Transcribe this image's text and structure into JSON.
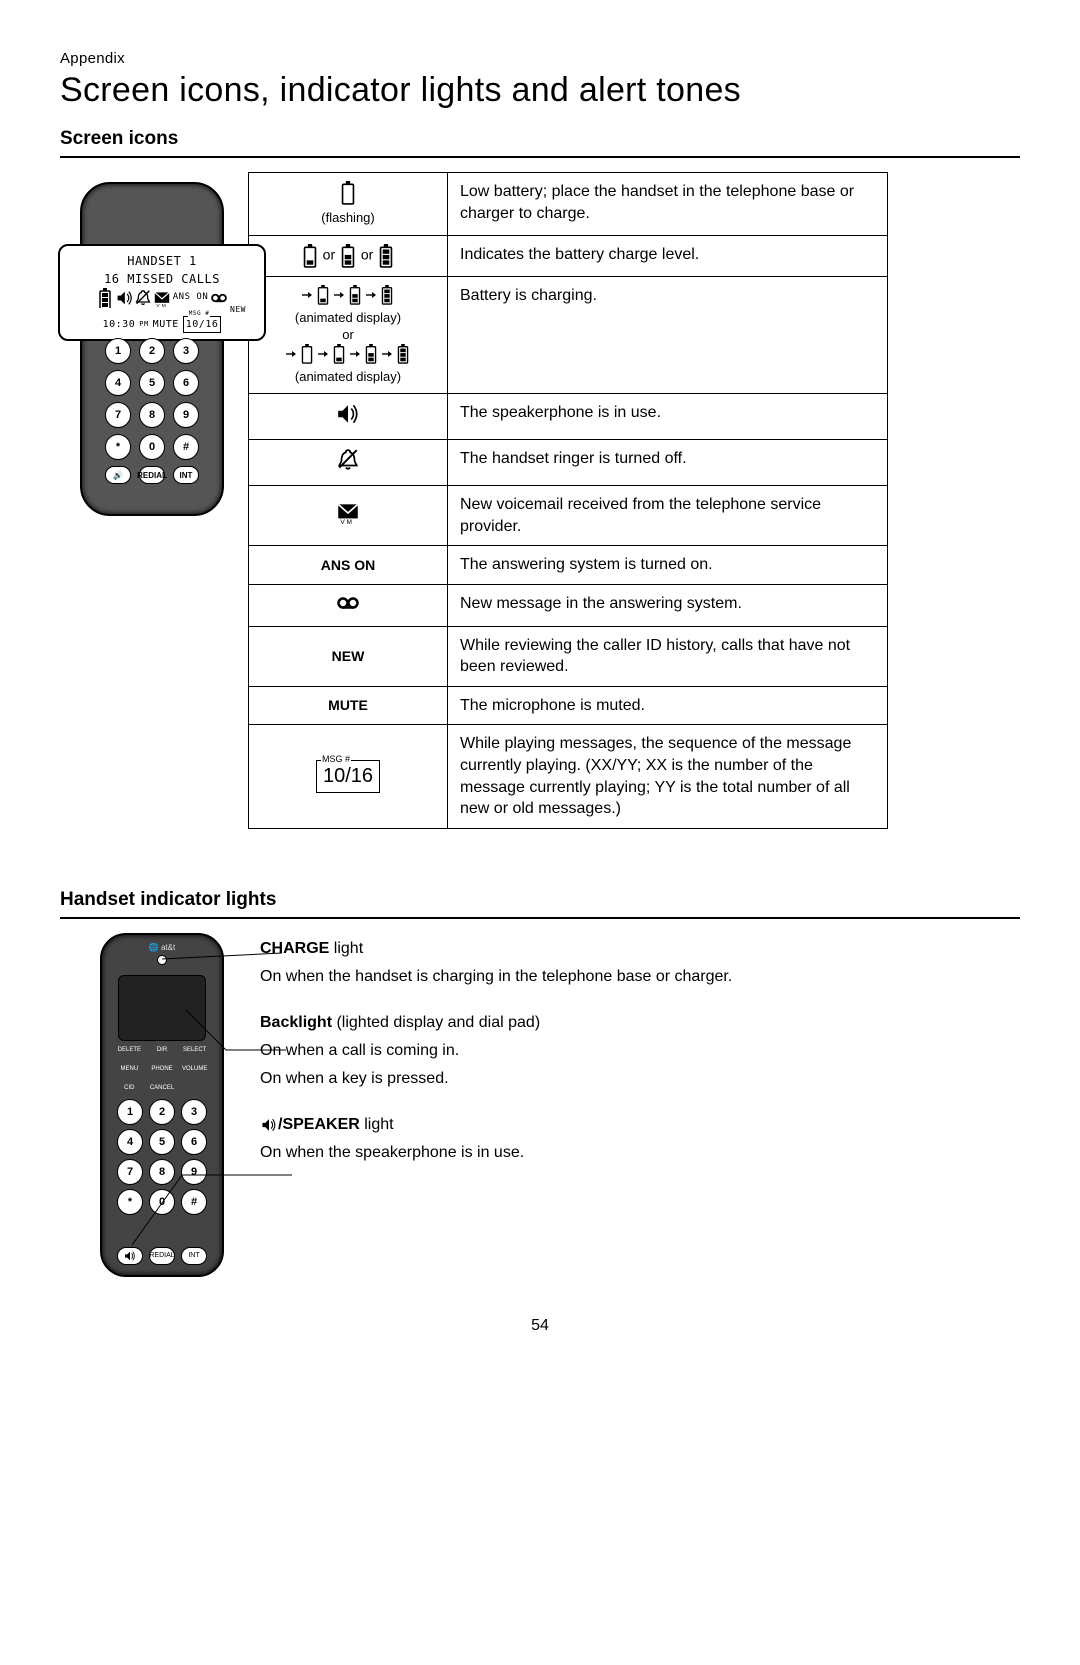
{
  "page": {
    "appendix_label": "Appendix",
    "title": "Screen icons, indicator lights and alert tones",
    "page_number": "54"
  },
  "section1": {
    "heading": "Screen icons",
    "handset_screen": {
      "line1": "HANDSET 1",
      "line2": "16 MISSED CALLS",
      "icon_row_text": "ANS ON",
      "new_label": "NEW",
      "time": "10:30",
      "time_suffix": "PM",
      "mute": "MUTE",
      "msg_label": "MSG #",
      "msg_count": "10/16"
    },
    "keypad": [
      "1",
      "2",
      "3",
      "4",
      "5",
      "6",
      "7",
      "8",
      "9",
      "*",
      "0",
      "#"
    ],
    "icons_table": {
      "rows": [
        {
          "caption": "(flashing)",
          "desc": "Low battery; place the handset in the telephone base or charger to charge.",
          "icon": "battery-empty"
        },
        {
          "caption": "or_batt",
          "desc": "Indicates the battery charge level.",
          "icon": "battery-levels"
        },
        {
          "caption": "(animated display)\nor",
          "caption2": "(animated display)",
          "desc": "Battery is charging.",
          "icon": "battery-anim"
        },
        {
          "caption": "",
          "desc": "The speakerphone is in use.",
          "icon": "speaker"
        },
        {
          "caption": "",
          "desc": "The handset ringer is turned off.",
          "icon": "ringer-off"
        },
        {
          "caption": "",
          "desc": "New voicemail received from the telephone service provider.",
          "icon": "voicemail-env"
        },
        {
          "caption": "ANS ON",
          "desc": "The answering system is turned on.",
          "icon": "text"
        },
        {
          "caption": "",
          "desc": "New message in the answering system.",
          "icon": "tape"
        },
        {
          "caption": "NEW",
          "desc": "While reviewing the caller ID history, calls that have not been reviewed.",
          "icon": "text"
        },
        {
          "caption": "MUTE",
          "desc": "The microphone is muted.",
          "icon": "text"
        },
        {
          "caption": "10/16",
          "msg_label": "MSG #",
          "desc": "While playing messages, the sequence of the message currently playing. (XX/YY; XX is the number of the message currently playing; YY is the total number of all new or old messages.)",
          "icon": "msgbox"
        }
      ],
      "or_text": "or"
    }
  },
  "section2": {
    "heading": "Handset indicator lights",
    "keypad": [
      "1",
      "2",
      "3",
      "4",
      "5",
      "6",
      "7",
      "8",
      "9",
      "*",
      "0",
      "#"
    ],
    "lights": [
      {
        "label_bold": "CHARGE",
        "label_rest": " light",
        "lines": [
          "On when the handset is charging in the telephone base or charger."
        ]
      },
      {
        "label_bold": "Backlight",
        "label_rest": " (lighted display and dial pad)",
        "lines": [
          "On when a call is coming in.",
          "On when a key is pressed."
        ]
      },
      {
        "label_bold_prefix_icon": "speaker",
        "label_bold": "/SPEAKER",
        "label_rest": " light",
        "lines": [
          "On when the speakerphone is in use."
        ]
      }
    ],
    "brand": "at&t",
    "softkeys": [
      "DELETE",
      "DIR",
      "SELECT",
      "MENU",
      "PHONE",
      "VOLUME",
      "CID",
      "CANCEL"
    ]
  },
  "style": {
    "background": "#ffffff",
    "text": "#000000",
    "handset_body": "#555555",
    "handset2_body": "#444444",
    "border_width": 1.5
  }
}
